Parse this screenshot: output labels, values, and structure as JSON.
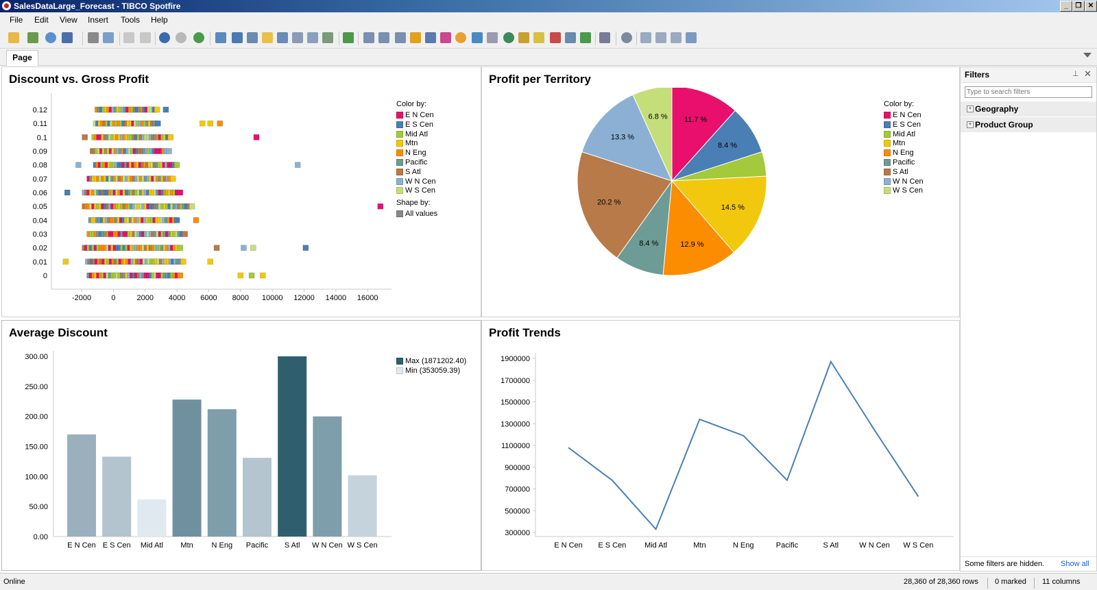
{
  "window": {
    "title": "SalesDataLarge_Forecast - TIBCO Spotfire"
  },
  "menu": {
    "items": [
      "File",
      "Edit",
      "View",
      "Insert",
      "Tools",
      "Help"
    ]
  },
  "tabs": {
    "active": "Page"
  },
  "territories": [
    "E N Cen",
    "E S Cen",
    "Mid Atl",
    "Mtn",
    "N Eng",
    "Pacific",
    "S Atl",
    "W N Cen",
    "W S Cen"
  ],
  "territory_colors": [
    "#e8106c",
    "#4a7fb5",
    "#a4c93a",
    "#f2c80f",
    "#fc8c00",
    "#6d9b96",
    "#b77a48",
    "#8cb0d4",
    "#c4df7a"
  ],
  "scatter": {
    "title": "Discount vs. Gross Profit",
    "legend": {
      "color_by": "Color by:",
      "shape_by": "Shape by:",
      "shape_value": "All values"
    },
    "chart_data": {
      "type": "scatter",
      "x_ticks": [
        "-2000",
        "0",
        "2000",
        "4000",
        "6000",
        "8000",
        "10000",
        "12000",
        "14000",
        "16000"
      ],
      "y_ticks": [
        "0",
        "0.01",
        "0.02",
        "0.03",
        "0.04",
        "0.05",
        "0.06",
        "0.07",
        "0.08",
        "0.09",
        "0.1",
        "0.11",
        "0.12"
      ],
      "xlim": [
        -3900,
        17500
      ],
      "ylim": [
        0,
        0.12
      ],
      "bands": [
        {
          "y": 0.12,
          "from": -1000,
          "to": 2800
        },
        {
          "y": 0.11,
          "from": -1100,
          "to": 2900
        },
        {
          "y": 0.1,
          "from": -1200,
          "to": 3700
        },
        {
          "y": 0.09,
          "from": -1300,
          "to": 3600
        },
        {
          "y": 0.08,
          "from": -1100,
          "to": 4000
        },
        {
          "y": 0.07,
          "from": -1500,
          "to": 3800
        },
        {
          "y": 0.06,
          "from": -1800,
          "to": 4200
        },
        {
          "y": 0.05,
          "from": -1800,
          "to": 5000
        },
        {
          "y": 0.04,
          "from": -1400,
          "to": 4000
        },
        {
          "y": 0.03,
          "from": -1500,
          "to": 4500
        },
        {
          "y": 0.02,
          "from": -1800,
          "to": 4300
        },
        {
          "y": 0.01,
          "from": -1600,
          "to": 4500
        },
        {
          "y": 0.0,
          "from": -1500,
          "to": 4200
        }
      ],
      "outliers": [
        {
          "x": 3300,
          "y": 0.12,
          "t": 1
        },
        {
          "x": 5600,
          "y": 0.11,
          "t": 3
        },
        {
          "x": 6100,
          "y": 0.11,
          "t": 3
        },
        {
          "x": 6700,
          "y": 0.11,
          "t": 4
        },
        {
          "x": -1800,
          "y": 0.1,
          "t": 6
        },
        {
          "x": 9000,
          "y": 0.1,
          "t": 0
        },
        {
          "x": -2200,
          "y": 0.08,
          "t": 7
        },
        {
          "x": 11600,
          "y": 0.08,
          "t": 7
        },
        {
          "x": -2900,
          "y": 0.06,
          "t": 1
        },
        {
          "x": 16800,
          "y": 0.05,
          "t": 0
        },
        {
          "x": 5200,
          "y": 0.04,
          "t": 4
        },
        {
          "x": 6500,
          "y": 0.02,
          "t": 6
        },
        {
          "x": 8200,
          "y": 0.02,
          "t": 7
        },
        {
          "x": 8800,
          "y": 0.02,
          "t": 8
        },
        {
          "x": 12100,
          "y": 0.02,
          "t": 1
        },
        {
          "x": -3000,
          "y": 0.01,
          "t": 3
        },
        {
          "x": 6100,
          "y": 0.01,
          "t": 3
        },
        {
          "x": 8000,
          "y": 0.0,
          "t": 3
        },
        {
          "x": 8700,
          "y": 0.0,
          "t": 2
        },
        {
          "x": 9400,
          "y": 0.0,
          "t": 3
        }
      ]
    }
  },
  "pie": {
    "title": "Profit per Territory",
    "legend": {
      "color_by": "Color by:"
    },
    "chart_data": {
      "type": "pie",
      "categories": [
        "E N Cen",
        "E S Cen",
        "Mid Atl",
        "S Atl",
        "W N Cen",
        "W S Cen",
        "Mtn",
        "N Eng",
        "Pacific"
      ],
      "values": [
        11.7,
        8.4,
        4.2,
        14.5,
        12.9,
        8.4,
        20.2,
        13.3,
        6.8
      ],
      "labels": [
        "11.7 %",
        "8.4 %",
        "",
        "14.5 %",
        "12.9 %",
        "8.4 %",
        "20.2 %",
        "13.3 %",
        "6.8 %"
      ],
      "colors": [
        "#e8106c",
        "#4a7fb5",
        "#a4c93a",
        "#f2c80f",
        "#fc8c00",
        "#6d9b96",
        "#b77a48",
        "#8cb0d4",
        "#c4df7a"
      ]
    }
  },
  "bar": {
    "title": "Average Discount",
    "legend": {
      "max_label": "Max (1871202.40)",
      "min_label": "Min (353059.39)",
      "max_color": "#2f5f6f",
      "min_color": "#e1e9f0"
    },
    "chart_data": {
      "type": "bar",
      "categories": [
        "E N Cen",
        "E S Cen",
        "Mid Atl",
        "Mtn",
        "N Eng",
        "Pacific",
        "S Atl",
        "W N Cen",
        "W S Cen"
      ],
      "values": [
        170,
        133,
        62,
        228,
        212,
        131,
        300,
        200,
        102
      ],
      "colors": [
        "#9ab1bd",
        "#b3c4ce",
        "#e1e9f0",
        "#6f909f",
        "#7f9eab",
        "#b4c5cf",
        "#2f5f6f",
        "#7f9eab",
        "#c5d3dc"
      ],
      "y_ticks": [
        "0.00",
        "50.00",
        "100.00",
        "150.00",
        "200.00",
        "250.00",
        "300.00"
      ],
      "ylim": [
        0,
        300
      ]
    }
  },
  "line": {
    "title": "Profit Trends",
    "chart_data": {
      "type": "line",
      "categories": [
        "E N Cen",
        "E S Cen",
        "Mid Atl",
        "Mtn",
        "N Eng",
        "Pacific",
        "S Atl",
        "W N Cen",
        "W S Cen"
      ],
      "values": [
        1080000,
        780000,
        330000,
        1340000,
        1190000,
        780000,
        1870000,
        1240000,
        630000
      ],
      "y_ticks": [
        "300000",
        "500000",
        "700000",
        "900000",
        "1100000",
        "1300000",
        "1500000",
        "1700000",
        "1900000"
      ],
      "ylim": [
        300000,
        1900000
      ],
      "color": "#4a7fb5"
    }
  },
  "filters": {
    "title": "Filters",
    "search_placeholder": "Type to search filters",
    "groups": [
      "Geography",
      "Product Group"
    ],
    "hidden_note": "Some filters are hidden.",
    "show_all": "Show all"
  },
  "status": {
    "left": "Online",
    "rows": "28,360 of 28,360 rows",
    "marked": "0 marked",
    "columns": "11 columns"
  }
}
